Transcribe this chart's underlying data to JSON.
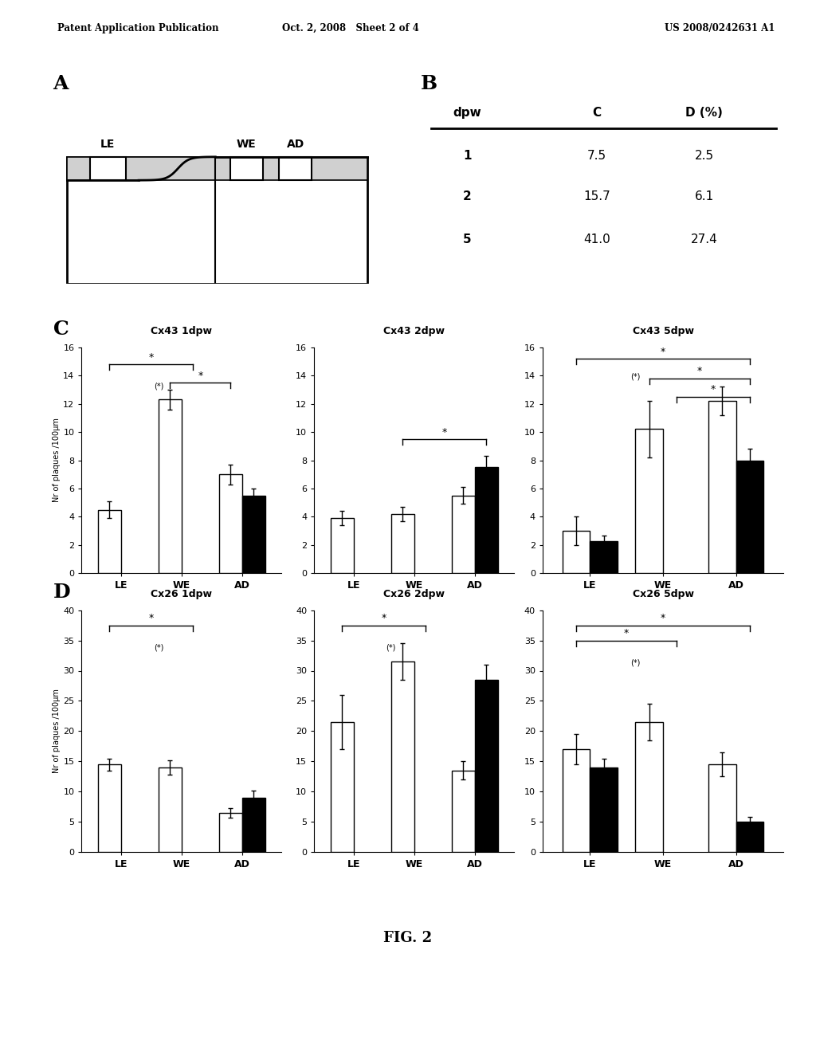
{
  "header_left": "Patent Application Publication",
  "header_mid": "Oct. 2, 2008   Sheet 2 of 4",
  "header_right": "US 2008/0242631 A1",
  "table_B": {
    "headers": [
      "dpw",
      "C",
      "D (%)"
    ],
    "rows": [
      [
        1,
        "7.5",
        "2.5"
      ],
      [
        2,
        "15.7",
        "6.1"
      ],
      [
        5,
        "41.0",
        "27.4"
      ]
    ]
  },
  "Cx43": {
    "1dpw": {
      "LE": [
        4.5,
        0.6,
        0.0,
        0.0
      ],
      "WE": [
        12.3,
        0.7,
        0.0,
        0.0
      ],
      "AD": [
        7.0,
        0.7,
        5.5,
        0.5
      ]
    },
    "2dpw": {
      "LE": [
        3.9,
        0.5,
        0.0,
        0.0
      ],
      "WE": [
        4.2,
        0.5,
        0.0,
        0.0
      ],
      "AD": [
        5.5,
        0.6,
        7.5,
        0.8
      ]
    },
    "5dpw": {
      "LE": [
        3.0,
        1.0,
        2.3,
        0.4
      ],
      "WE": [
        10.2,
        2.0,
        0.0,
        0.0
      ],
      "AD": [
        12.2,
        1.0,
        8.0,
        0.8
      ]
    }
  },
  "Cx26": {
    "1dpw": {
      "LE": [
        14.5,
        1.0,
        0.0,
        0.0
      ],
      "WE": [
        14.0,
        1.2,
        0.0,
        0.0
      ],
      "AD": [
        6.5,
        0.8,
        9.0,
        1.2
      ]
    },
    "2dpw": {
      "LE": [
        21.5,
        4.5,
        0.0,
        0.0
      ],
      "WE": [
        31.5,
        3.0,
        0.0,
        0.0
      ],
      "AD": [
        13.5,
        1.5,
        28.5,
        2.5
      ]
    },
    "5dpw": {
      "LE": [
        17.0,
        2.5,
        14.0,
        1.5
      ],
      "WE": [
        21.5,
        3.0,
        0.0,
        0.0
      ],
      "AD": [
        14.5,
        2.0,
        5.0,
        0.8
      ]
    }
  },
  "fig_caption": "FIG. 2",
  "ylabel": "Nr of plaques /100μm"
}
